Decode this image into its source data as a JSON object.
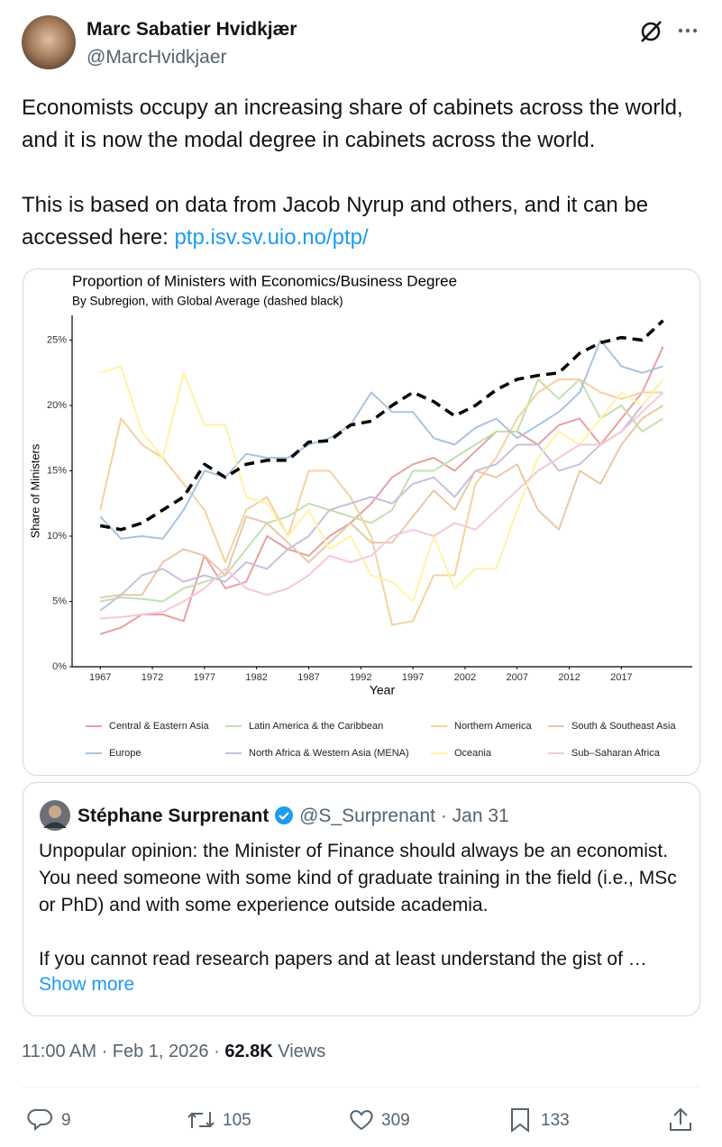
{
  "tweet": {
    "author": "Marc Sabatier Hvidkjær",
    "handle": "@MarcHvidkjaer",
    "paragraphs": [
      "Economists occupy an increasing share of cabinets across the world, and it is now the modal degree in cabinets across the world.",
      "This is based on data from Jacob Nyrup and others, and it can be accessed here: "
    ],
    "link": "ptp.isv.sv.uio.no/ptp/",
    "quote": {
      "author": "Stéphane Surprenant",
      "handle": "@S_Surprenant",
      "separator": "·",
      "date": "Jan 31",
      "paragraphs": [
        "Unpopular opinion: the Minister of Finance should always be an economist. You need someone with some kind of graduate training in the field (i.e., MSc or PhD) and with some experience outside academia.",
        "If you cannot read research papers and at least understand the gist of …"
      ],
      "show_more": "Show more"
    },
    "timestamp": "11:00 AM · Feb 1, 2026 · ",
    "views": "62.8K",
    "views_label": "Views",
    "replies": 9,
    "reposts": 105,
    "likes": 309,
    "bookmarks": 133
  },
  "chart_data": {
    "type": "line",
    "title": "Proportion of Ministers with Economics/Business Degree",
    "subtitle": "By Subregion, with Global Average (dashed black)",
    "x_label": "Year",
    "y_label": "Share of Ministers",
    "xlim": [
      1964.3,
      2023.8
    ],
    "ylim": [
      0,
      26.9
    ],
    "xticks": [
      1967,
      1972,
      1977,
      1982,
      1987,
      1992,
      1997,
      2002,
      2007,
      2012,
      2017
    ],
    "yticks": [
      {
        "value": 0,
        "label": "0%"
      },
      {
        "value": 5,
        "label": "5%"
      },
      {
        "value": 10,
        "label": "10%"
      },
      {
        "value": 15,
        "label": "15%"
      },
      {
        "value": 20,
        "label": "20%"
      },
      {
        "value": 25,
        "label": "25%"
      }
    ],
    "grid": false,
    "x": [
      1967,
      1969,
      1971,
      1973,
      1975,
      1977,
      1979,
      1981,
      1983,
      1985,
      1987,
      1989,
      1991,
      1993,
      1995,
      1997,
      1999,
      2001,
      2003,
      2005,
      2007,
      2009,
      2011,
      2013,
      2015,
      2017,
      2019,
      2021
    ],
    "global_average": {
      "color": "#000000",
      "values": [
        10.8,
        10.5,
        11,
        12,
        13,
        15.5,
        14.5,
        15.5,
        15.8,
        15.8,
        17.2,
        17.3,
        18.5,
        18.8,
        20,
        21,
        20.3,
        19.2,
        20,
        21.2,
        22,
        22.3,
        22.5,
        24,
        24.8,
        25.2,
        25,
        26.5
      ]
    },
    "series": [
      {
        "name": "Central & Eastern Asia",
        "color": "#e8a0a0",
        "values": [
          2.5,
          3,
          4,
          4,
          3.5,
          8.5,
          6,
          6.5,
          10,
          9,
          8.5,
          10,
          11,
          12.5,
          14.5,
          15.5,
          16,
          15,
          16.5,
          18,
          18,
          17,
          18.5,
          19,
          17,
          19,
          21,
          24.5
        ]
      },
      {
        "name": "Latin America & the Caribbean",
        "color": "#c3e0b0",
        "values": [
          5,
          5.3,
          5.2,
          5,
          6,
          6.5,
          7,
          9,
          11,
          11.5,
          12.5,
          12,
          11.5,
          11,
          12,
          15,
          15,
          16,
          17,
          18,
          18,
          22,
          20.5,
          22,
          19,
          20,
          18,
          19
        ]
      },
      {
        "name": "Northern America",
        "color": "#f4d2a0",
        "values": [
          12,
          19,
          17,
          16,
          14,
          12,
          8,
          12,
          13,
          10,
          15,
          15,
          13,
          10,
          3.2,
          3.5,
          7,
          7,
          14,
          16,
          19,
          21,
          22,
          22,
          21,
          20.5,
          21,
          21
        ]
      },
      {
        "name": "South & Southeast Asia",
        "color": "#e8c8a8",
        "values": [
          5.3,
          5.5,
          5.5,
          8,
          9,
          8.5,
          7,
          11.5,
          11,
          9.5,
          8,
          9.5,
          11,
          9.5,
          9.5,
          11.5,
          13.5,
          12,
          15,
          14.5,
          15.5,
          12,
          10.5,
          15,
          14,
          17,
          19,
          20
        ]
      },
      {
        "name": "Europe",
        "color": "#a8c4e0",
        "values": [
          11.5,
          9.8,
          10,
          9.8,
          12,
          15,
          14.5,
          16.3,
          16,
          16,
          17,
          17.5,
          18.5,
          21,
          19.5,
          19.5,
          17.5,
          17,
          18.3,
          19,
          17.5,
          18.5,
          19.5,
          21,
          25,
          23,
          22.5,
          23
        ]
      },
      {
        "name": "North Africa & Western Asia (MENA)",
        "color": "#c8c0dc",
        "values": [
          4.3,
          5.5,
          7,
          7.5,
          6.5,
          7,
          6.5,
          8,
          7.5,
          9,
          10,
          12,
          12.5,
          13,
          12.5,
          14,
          14.5,
          13,
          15,
          15.5,
          17,
          17,
          15,
          15.5,
          17,
          18,
          20,
          22
        ]
      },
      {
        "name": "Oceania",
        "color": "#fff3a8",
        "values": [
          22.5,
          23,
          18,
          16,
          22.5,
          18.5,
          18.5,
          13,
          12.5,
          10,
          12,
          9,
          10,
          7,
          6.5,
          5,
          10,
          6,
          7.5,
          7.5,
          12,
          16,
          18,
          17,
          19,
          21,
          20,
          22
        ]
      },
      {
        "name": "Sub–Saharan Africa",
        "color": "#f4c8d8",
        "values": [
          3.7,
          3.8,
          4,
          4.2,
          5,
          6,
          7.5,
          6,
          5.5,
          6,
          7,
          8.5,
          8,
          8.5,
          10,
          10.5,
          10,
          11,
          10.5,
          12,
          13.5,
          15,
          16,
          17,
          17,
          18,
          19.5,
          21
        ]
      }
    ]
  }
}
